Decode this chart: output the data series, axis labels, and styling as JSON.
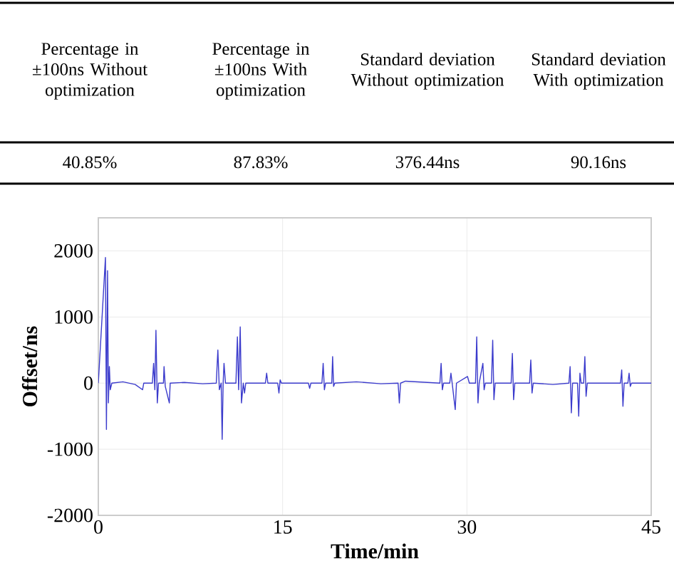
{
  "chart_data": [
    {
      "type": "other",
      "annotations": [
        "Percentage in ±100ns Without optimization",
        "Percentage in ±100ns With optimization",
        "Standard deviation Without optimization",
        "Standard deviation With optimization",
        "40.85%",
        "87.83%",
        "376.44ns",
        "90.16ns"
      ]
    },
    {
      "type": "line",
      "xlabel": "Time/min",
      "ylabel": "Offset/ns",
      "xlim": [
        0,
        45
      ],
      "ylim": [
        -2000,
        2500
      ],
      "xticks": [
        0,
        15,
        30,
        45
      ],
      "yticks": [
        -2000,
        -1000,
        0,
        1000,
        2000
      ],
      "grid": true,
      "series": [
        {
          "color": "#3b3bcc",
          "x": [
            0,
            0.05,
            0.1,
            0.15,
            0.2,
            0.25,
            0.3,
            0.35,
            0.4,
            0.45,
            0.5,
            0.58,
            0.66,
            0.75,
            0.82,
            0.9,
            0.97,
            1.1,
            2,
            3,
            3.6,
            3.7,
            4.4,
            4.5,
            4.6,
            4.69,
            4.8,
            4.9,
            5.3,
            5.35,
            5.45,
            5.78,
            5.85,
            7,
            8.5,
            9.6,
            9.73,
            9.85,
            10.0,
            10.08,
            10.16,
            10.23,
            10.35,
            11.2,
            11.32,
            11.42,
            11.55,
            11.65,
            11.8,
            11.9,
            12.0,
            13.6,
            13.7,
            13.8,
            14.6,
            14.7,
            14.8,
            14.9,
            17.1,
            17.2,
            17.3,
            18.2,
            18.3,
            18.4,
            18.5,
            19.0,
            19.07,
            19.15,
            19.25,
            21,
            23,
            24.4,
            24.5,
            24.6,
            25,
            27.8,
            27.9,
            28.0,
            28.1,
            28.6,
            28.7,
            28.8,
            29.05,
            29.15,
            30.05,
            30.2,
            30.7,
            30.8,
            30.9,
            31.0,
            31.3,
            31.4,
            31.5,
            32.0,
            32.1,
            32.2,
            32.3,
            33.6,
            33.7,
            33.8,
            33.9,
            35.1,
            35.2,
            35.3,
            35.4,
            37,
            38.3,
            38.4,
            38.5,
            38.6,
            39.0,
            39.1,
            39.2,
            39.3,
            39.5,
            39.6,
            39.7,
            39.8,
            42.5,
            42.6,
            42.7,
            42.8,
            43.1,
            43.2,
            43.3,
            43.4,
            45
          ],
          "values": [
            0,
            null,
            null,
            null,
            null,
            null,
            null,
            null,
            null,
            null,
            null,
            1900,
            -700,
            1700,
            -300,
            250,
            -100,
            0,
            20,
            -20,
            -100,
            0,
            0,
            300,
            -100,
            800,
            -300,
            0,
            0,
            250,
            -50,
            -300,
            0,
            10,
            -10,
            0,
            500,
            -100,
            0,
            -850,
            0,
            300,
            0,
            0,
            700,
            -100,
            850,
            -300,
            0,
            -150,
            0,
            0,
            150,
            0,
            0,
            -150,
            50,
            0,
            0,
            -80,
            0,
            0,
            300,
            -100,
            0,
            0,
            400,
            -50,
            0,
            20,
            -10,
            0,
            -300,
            0,
            30,
            0,
            300,
            -100,
            0,
            0,
            150,
            0,
            -400,
            0,
            100,
            0,
            0,
            700,
            -300,
            0,
            300,
            -100,
            0,
            0,
            650,
            -250,
            0,
            0,
            450,
            -250,
            0,
            0,
            350,
            -150,
            0,
            -20,
            0,
            250,
            -450,
            0,
            0,
            -500,
            150,
            0,
            0,
            400,
            -200,
            0,
            0,
            200,
            -350,
            0,
            0,
            150,
            -50,
            0,
            0
          ]
        }
      ]
    }
  ]
}
